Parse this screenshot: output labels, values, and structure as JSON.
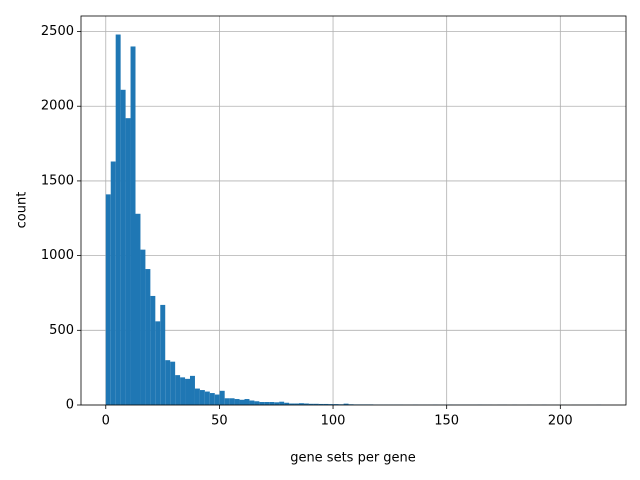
{
  "chart_data": {
    "type": "histogram",
    "xlabel": "gene sets per gene",
    "ylabel": "count",
    "bins": [
      0,
      2.18,
      4.36,
      6.54,
      8.72,
      10.9,
      13.08,
      15.26,
      17.44,
      19.62,
      21.8,
      23.98,
      26.16,
      28.34,
      30.52,
      32.7,
      34.88,
      37.06,
      39.24,
      41.42,
      43.6,
      45.78,
      47.96,
      50.14,
      52.32,
      54.5,
      56.68,
      58.86,
      61.04,
      63.22,
      65.4,
      67.58,
      69.76,
      71.94,
      74.12,
      76.3,
      78.48,
      80.66,
      82.84,
      85.02,
      87.2,
      89.38,
      91.56,
      93.74,
      95.92,
      98.1,
      100.28,
      102.46,
      104.64,
      106.82,
      109,
      111.18,
      113.36,
      115.54,
      117.72,
      119.9,
      122.08,
      124.26,
      126.44,
      128.62,
      130.8,
      132.98,
      135.16,
      137.34,
      139.52,
      141.7,
      143.88,
      146.06,
      148.24,
      150.42,
      152.6,
      154.78,
      156.96,
      159.14,
      161.32,
      163.5,
      165.68,
      167.86,
      170.04,
      172.22,
      174.4,
      176.58,
      178.76,
      180.94,
      183.12,
      185.3,
      187.48,
      189.66,
      191.84,
      194.02,
      196.2,
      198.38,
      200.56,
      202.74,
      204.92,
      207.1,
      209.28,
      211.46,
      213.64,
      215.82,
      218
    ],
    "values": [
      1410,
      1630,
      2480,
      2110,
      1920,
      2400,
      1280,
      1040,
      910,
      730,
      560,
      670,
      300,
      290,
      200,
      185,
      175,
      195,
      110,
      100,
      90,
      80,
      70,
      95,
      45,
      45,
      40,
      35,
      40,
      30,
      25,
      20,
      20,
      20,
      18,
      22,
      15,
      10,
      10,
      12,
      10,
      8,
      8,
      7,
      7,
      6,
      6,
      5,
      9,
      5,
      4,
      4,
      4,
      4,
      3,
      3,
      3,
      3,
      3,
      3,
      2,
      2,
      3,
      2,
      2,
      2,
      3,
      2,
      2,
      3,
      2,
      2,
      2,
      2,
      2,
      3,
      2,
      2,
      1,
      2,
      2,
      1,
      2,
      1,
      1,
      2,
      1,
      1,
      2,
      1,
      1,
      1,
      1,
      0,
      1,
      1,
      1,
      1,
      1,
      2
    ],
    "color": "#1f77b4",
    "xlim": [
      -10.9,
      228.9
    ],
    "xticks": [
      0,
      50,
      100,
      150,
      200
    ],
    "ylim": [
      0,
      2604
    ],
    "yticks": [
      0,
      500,
      1000,
      1500,
      2000,
      2500
    ],
    "grid": true
  }
}
